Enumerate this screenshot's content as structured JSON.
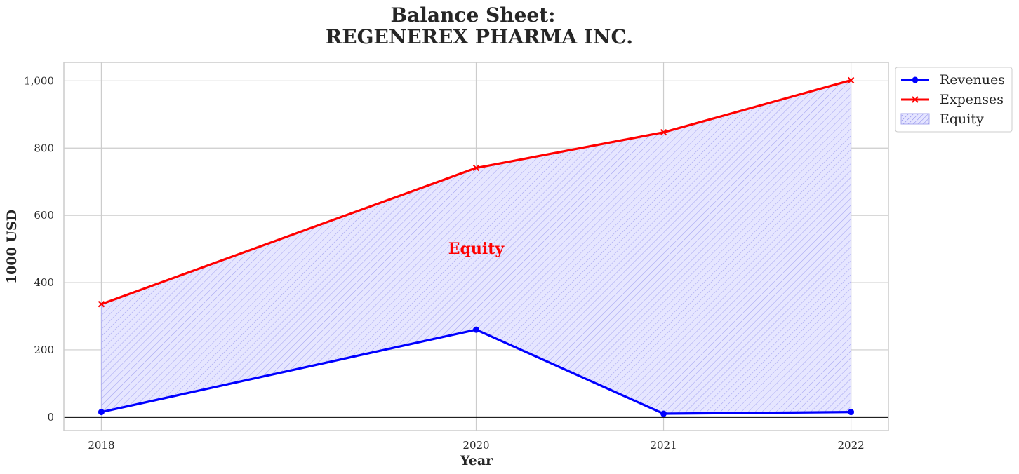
{
  "chart_data": {
    "type": "line",
    "title_line1": "Balance Sheet:",
    "title_line2": "REGENEREX PHARMA INC.",
    "xlabel": "Year",
    "ylabel": "1000 USD",
    "x": [
      2018,
      2020,
      2021,
      2022
    ],
    "x_tick_labels": [
      "2018",
      "2020",
      "2021",
      "2022"
    ],
    "xlim": [
      2017.8,
      2022.2
    ],
    "ylim": [
      -40,
      1055
    ],
    "y_ticks": [
      0,
      200,
      400,
      600,
      800,
      1000
    ],
    "y_tick_labels": [
      "0",
      "200",
      "400",
      "600",
      "800",
      "1,000"
    ],
    "grid": true,
    "legend_position": "outside top-right",
    "series": [
      {
        "name": "Revenues",
        "values": [
          15,
          260,
          10,
          15
        ],
        "color": "#0000ff",
        "marker": "circle"
      },
      {
        "name": "Expenses",
        "values": [
          336,
          741,
          847,
          1002
        ],
        "color": "#ff0000",
        "marker": "x"
      }
    ],
    "fill": {
      "name": "Equity",
      "between": [
        "Revenues",
        "Expenses"
      ],
      "color": "#0000ff",
      "hatch": "////"
    },
    "annotation": {
      "text": "Equity",
      "x": 2020,
      "y": 500,
      "color": "#ff0000"
    }
  }
}
